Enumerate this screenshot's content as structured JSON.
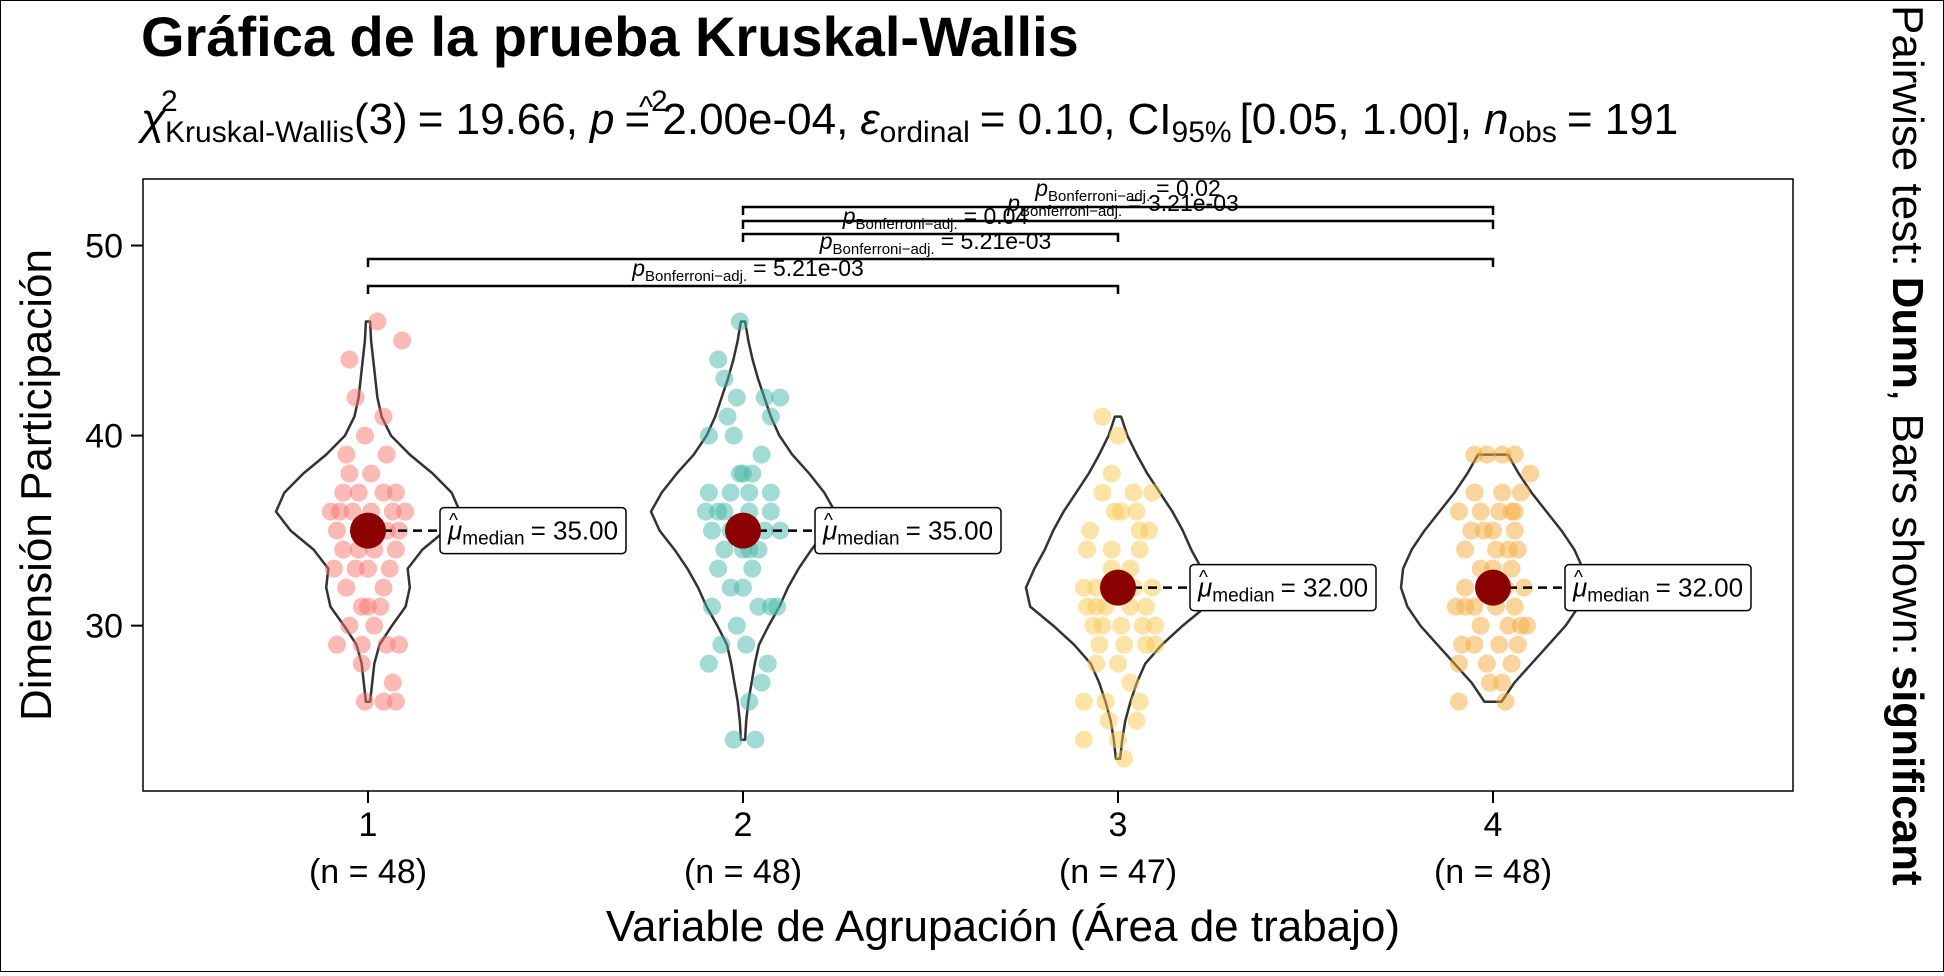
{
  "chart_data": {
    "type": "violin",
    "title": "Gráfica de la prueba Kruskal-Wallis",
    "subtitle": {
      "stat_symbol": "χ",
      "stat_sup": "2",
      "stat_sub": "Kruskal-Wallis",
      "df": "(3)",
      "stat_value": "= 19.66,",
      "p_symbol": "p",
      "p_value": "= 2.00e-04,",
      "effect_symbol": "ε",
      "effect_hat": "^",
      "effect_sup": "2",
      "effect_sub": "ordinal",
      "effect_value": "= 0.10,",
      "ci_symbol": "CI",
      "ci_sub": "95%",
      "ci_value": "[0.05, 1.00],",
      "n_symbol": "n",
      "n_sub": "obs",
      "n_value": "= 191"
    },
    "caption": {
      "prefix": "Pairwise test:",
      "test": "Dunn",
      "middle": ", Bars shown:",
      "bars": "significant"
    },
    "xlabel": "Variable de Agrupación (Área de trabajo)",
    "ylabel": "Dimensión Participación",
    "ylim": [
      21.3,
      53.5
    ],
    "yticks": [
      30,
      40,
      50
    ],
    "grid": false,
    "categories": [
      "1",
      "2",
      "3",
      "4"
    ],
    "counts": [
      "(n = 48)",
      "(n = 48)",
      "(n = 47)",
      "(n = 48)"
    ],
    "group_colors": [
      "#f8766d",
      "#45b8a8",
      "#f9c74f",
      "#f6a93b"
    ],
    "median_color": "#8b0000",
    "groups": [
      {
        "name": "1",
        "color": "#f8766d",
        "median": 35.0,
        "median_label": "= 35.00",
        "range": [
          26,
          46
        ],
        "violin": [
          [
            26,
            2
          ],
          [
            27,
            4
          ],
          [
            28,
            6
          ],
          [
            29,
            11
          ],
          [
            30,
            23
          ],
          [
            31,
            36
          ],
          [
            32,
            40
          ],
          [
            33,
            38
          ],
          [
            34,
            52
          ],
          [
            35,
            74
          ],
          [
            36,
            88
          ],
          [
            37,
            80
          ],
          [
            38,
            62
          ],
          [
            39,
            40
          ],
          [
            40,
            22
          ],
          [
            41,
            13
          ],
          [
            42,
            9
          ],
          [
            43,
            7
          ],
          [
            44,
            5
          ],
          [
            45,
            3
          ],
          [
            46,
            2
          ]
        ],
        "points": [
          [
            46,
            0.15
          ],
          [
            45,
            0.55
          ],
          [
            44,
            -0.3
          ],
          [
            42,
            -0.2
          ],
          [
            41,
            0.25
          ],
          [
            40,
            -0.05
          ],
          [
            39,
            -0.35
          ],
          [
            39,
            0.3
          ],
          [
            38,
            -0.3
          ],
          [
            38,
            0.05
          ],
          [
            37,
            -0.4
          ],
          [
            37,
            -0.15
          ],
          [
            37,
            0.25
          ],
          [
            37,
            0.45
          ],
          [
            36,
            -0.6
          ],
          [
            36,
            -0.25
          ],
          [
            36,
            0.05
          ],
          [
            36,
            0.4
          ],
          [
            36,
            0.6
          ],
          [
            36,
            -0.45
          ],
          [
            35,
            -0.5
          ],
          [
            35,
            0.5
          ],
          [
            35,
            -0.1
          ],
          [
            35,
            0.3
          ],
          [
            34,
            -0.4
          ],
          [
            34,
            0.1
          ],
          [
            34,
            0.45
          ],
          [
            34,
            -0.15
          ],
          [
            33,
            -0.55
          ],
          [
            33,
            -0.2
          ],
          [
            33,
            0.35
          ],
          [
            33,
            0.0
          ],
          [
            32,
            -0.35
          ],
          [
            32,
            0.25
          ],
          [
            31,
            0.0
          ],
          [
            31,
            0.2
          ],
          [
            31,
            -0.1
          ],
          [
            30,
            -0.3
          ],
          [
            30,
            0.1
          ],
          [
            29,
            -0.5
          ],
          [
            29,
            -0.1
          ],
          [
            29,
            0.3
          ],
          [
            29,
            0.5
          ],
          [
            28,
            -0.1
          ],
          [
            27,
            0.4
          ],
          [
            26,
            -0.05
          ],
          [
            26,
            0.25
          ],
          [
            26,
            0.45
          ]
        ]
      },
      {
        "name": "2",
        "color": "#45b8a8",
        "median": 35.0,
        "median_label": "= 35.00",
        "range": [
          24,
          46
        ],
        "violin": [
          [
            24,
            2
          ],
          [
            25,
            3
          ],
          [
            26,
            5
          ],
          [
            27,
            8
          ],
          [
            28,
            11
          ],
          [
            29,
            15
          ],
          [
            30,
            24
          ],
          [
            31,
            34
          ],
          [
            32,
            42
          ],
          [
            33,
            52
          ],
          [
            34,
            64
          ],
          [
            35,
            78
          ],
          [
            36,
            86
          ],
          [
            37,
            76
          ],
          [
            38,
            62
          ],
          [
            39,
            46
          ],
          [
            40,
            34
          ],
          [
            41,
            26
          ],
          [
            42,
            20
          ],
          [
            43,
            14
          ],
          [
            44,
            9
          ],
          [
            45,
            5
          ],
          [
            46,
            2
          ]
        ],
        "points": [
          [
            46,
            -0.05
          ],
          [
            44,
            -0.4
          ],
          [
            43,
            -0.3
          ],
          [
            42,
            -0.1
          ],
          [
            42,
            0.35
          ],
          [
            42,
            0.6
          ],
          [
            41,
            -0.25
          ],
          [
            41,
            0.45
          ],
          [
            40,
            -0.55
          ],
          [
            40,
            -0.15
          ],
          [
            39,
            0.3
          ],
          [
            38,
            -0.05
          ],
          [
            38,
            0.0
          ],
          [
            38,
            0.15
          ],
          [
            37,
            -0.55
          ],
          [
            37,
            -0.2
          ],
          [
            37,
            0.1
          ],
          [
            37,
            0.45
          ],
          [
            36,
            -0.6
          ],
          [
            36,
            -0.3
          ],
          [
            36,
            0.1
          ],
          [
            36,
            0.45
          ],
          [
            36,
            -0.4
          ],
          [
            35,
            -0.5
          ],
          [
            35,
            -0.2
          ],
          [
            35,
            0.35
          ],
          [
            35,
            0.6
          ],
          [
            34,
            -0.3
          ],
          [
            34,
            0.0
          ],
          [
            34,
            0.25
          ],
          [
            34,
            0.1
          ],
          [
            33,
            -0.4
          ],
          [
            33,
            0.15
          ],
          [
            32,
            0.0
          ],
          [
            32,
            -0.2
          ],
          [
            31,
            -0.5
          ],
          [
            31,
            0.25
          ],
          [
            31,
            0.45
          ],
          [
            31,
            0.55
          ],
          [
            30,
            -0.1
          ],
          [
            29,
            -0.35
          ],
          [
            29,
            0.05
          ],
          [
            28,
            -0.55
          ],
          [
            28,
            0.4
          ],
          [
            27,
            0.3
          ],
          [
            26,
            0.1
          ],
          [
            24,
            -0.15
          ],
          [
            24,
            0.2
          ]
        ]
      },
      {
        "name": "3",
        "color": "#f9c74f",
        "median": 32.0,
        "median_label": "= 32.00",
        "range": [
          23,
          41
        ],
        "violin": [
          [
            23,
            2
          ],
          [
            24,
            4
          ],
          [
            25,
            7
          ],
          [
            26,
            12
          ],
          [
            27,
            18
          ],
          [
            28,
            26
          ],
          [
            29,
            42
          ],
          [
            30,
            62
          ],
          [
            31,
            84
          ],
          [
            32,
            88
          ],
          [
            33,
            80
          ],
          [
            34,
            70
          ],
          [
            35,
            62
          ],
          [
            36,
            52
          ],
          [
            37,
            40
          ],
          [
            38,
            28
          ],
          [
            39,
            18
          ],
          [
            40,
            9
          ],
          [
            41,
            3
          ]
        ],
        "points": [
          [
            41,
            -0.25
          ],
          [
            40,
            0.0
          ],
          [
            38,
            -0.1
          ],
          [
            37,
            -0.25
          ],
          [
            37,
            0.25
          ],
          [
            37,
            0.55
          ],
          [
            36,
            -0.05
          ],
          [
            36,
            0.05
          ],
          [
            36,
            0.3
          ],
          [
            35,
            -0.45
          ],
          [
            35,
            0.35
          ],
          [
            35,
            0.5
          ],
          [
            34,
            -0.5
          ],
          [
            34,
            -0.1
          ],
          [
            34,
            0.35
          ],
          [
            33,
            -0.1
          ],
          [
            33,
            0.2
          ],
          [
            32,
            -0.55
          ],
          [
            32,
            -0.35
          ],
          [
            32,
            -0.15
          ],
          [
            32,
            0.25
          ],
          [
            32,
            0.55
          ],
          [
            31,
            -0.5
          ],
          [
            31,
            -0.2
          ],
          [
            31,
            0.2
          ],
          [
            31,
            0.45
          ],
          [
            31,
            -0.35
          ],
          [
            30,
            -0.4
          ],
          [
            30,
            -0.25
          ],
          [
            30,
            0.05
          ],
          [
            30,
            0.4
          ],
          [
            30,
            0.6
          ],
          [
            29,
            -0.3
          ],
          [
            29,
            0.1
          ],
          [
            29,
            0.45
          ],
          [
            29,
            0.6
          ],
          [
            28,
            0.0
          ],
          [
            28,
            -0.35
          ],
          [
            27,
            0.2
          ],
          [
            26,
            -0.55
          ],
          [
            26,
            -0.2
          ],
          [
            26,
            0.35
          ],
          [
            25,
            -0.15
          ],
          [
            25,
            0.3
          ],
          [
            24,
            -0.55
          ],
          [
            24,
            0.0
          ],
          [
            23,
            0.1
          ]
        ]
      },
      {
        "name": "4",
        "color": "#f6a93b",
        "median": 32.0,
        "median_label": "= 32.00",
        "range": [
          26,
          39
        ],
        "violin": [
          [
            26,
            8
          ],
          [
            27,
            20
          ],
          [
            28,
            36
          ],
          [
            29,
            52
          ],
          [
            30,
            68
          ],
          [
            31,
            80
          ],
          [
            32,
            86
          ],
          [
            33,
            84
          ],
          [
            34,
            76
          ],
          [
            35,
            64
          ],
          [
            36,
            50
          ],
          [
            37,
            36
          ],
          [
            38,
            24
          ],
          [
            39,
            14
          ]
        ],
        "points": [
          [
            39,
            -0.3
          ],
          [
            39,
            -0.1
          ],
          [
            39,
            0.15
          ],
          [
            39,
            0.35
          ],
          [
            38,
            0.6
          ],
          [
            37,
            -0.3
          ],
          [
            37,
            0.15
          ],
          [
            37,
            0.45
          ],
          [
            36,
            -0.55
          ],
          [
            36,
            -0.2
          ],
          [
            36,
            0.1
          ],
          [
            36,
            0.35
          ],
          [
            36,
            0.3
          ],
          [
            35,
            -0.35
          ],
          [
            35,
            0.0
          ],
          [
            35,
            0.35
          ],
          [
            35,
            -0.15
          ],
          [
            34,
            -0.45
          ],
          [
            34,
            0.05
          ],
          [
            34,
            0.4
          ],
          [
            34,
            0.25
          ],
          [
            33,
            -0.2
          ],
          [
            33,
            0.3
          ],
          [
            33,
            0.0
          ],
          [
            32,
            -0.45
          ],
          [
            32,
            -0.1
          ],
          [
            32,
            0.2
          ],
          [
            32,
            0.5
          ],
          [
            31,
            -0.6
          ],
          [
            31,
            -0.3
          ],
          [
            31,
            0.05
          ],
          [
            31,
            0.35
          ],
          [
            31,
            -0.45
          ],
          [
            30,
            -0.2
          ],
          [
            30,
            0.25
          ],
          [
            30,
            0.55
          ],
          [
            30,
            0.45
          ],
          [
            29,
            -0.5
          ],
          [
            29,
            -0.3
          ],
          [
            29,
            0.1
          ],
          [
            29,
            0.4
          ],
          [
            28,
            -0.55
          ],
          [
            28,
            -0.1
          ],
          [
            28,
            0.3
          ],
          [
            27,
            -0.05
          ],
          [
            27,
            0.15
          ],
          [
            26,
            -0.55
          ],
          [
            26,
            0.2
          ]
        ]
      }
    ],
    "comparisons": [
      {
        "groups": [
          "1",
          "3"
        ],
        "label_prefix": "p",
        "label_sub": "Bonferroni−adj.",
        "label_value": "= 5.21e-03"
      },
      {
        "groups": [
          "1",
          "4"
        ],
        "label_prefix": "p",
        "label_sub": "Bonferroni−adj.",
        "label_value": "= 5.21e-03"
      },
      {
        "groups": [
          "2",
          "3"
        ],
        "label_prefix": "p",
        "label_sub": "Bonferroni−adj.",
        "label_value": "= 0.04"
      },
      {
        "groups": [
          "2",
          "4"
        ],
        "label_prefix": "p",
        "label_sub": "Bonferroni−adj.",
        "label_value": "= 3.21e-03"
      },
      {
        "groups": [
          "2",
          "4"
        ],
        "label_prefix": "p",
        "label_sub": "Bonferroni−adj.",
        "label_value": "= 0.02"
      }
    ],
    "median_symbol": "μ",
    "median_sub": "median"
  }
}
